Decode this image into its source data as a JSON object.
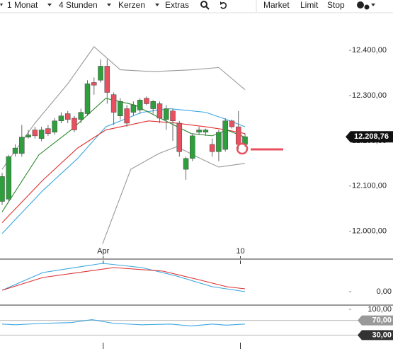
{
  "toolbar": {
    "items": [
      "1 Monat",
      "4 Stunden",
      "Kerzen",
      "Extras"
    ],
    "orders": [
      "Market",
      "Limit",
      "Stop"
    ]
  },
  "chart_data": [
    {
      "type": "candlestick",
      "open": [
        12066,
        12071,
        12172,
        12172,
        12208,
        12224,
        12205,
        12227,
        12219,
        12244,
        12260,
        12250,
        12247,
        12260,
        12329,
        12334,
        12365,
        12302,
        12255,
        12271,
        12263,
        12268,
        12294,
        12271,
        12282,
        12247,
        12266,
        12239,
        12137,
        12161,
        12219,
        12219,
        12192,
        12176,
        12181,
        12244,
        12231,
        12192
      ],
      "high": [
        12129,
        12169,
        12192,
        12235,
        12224,
        12231,
        12231,
        12235,
        12250,
        12263,
        12266,
        12255,
        12271,
        12334,
        12340,
        12380,
        12380,
        12307,
        12294,
        12279,
        12287,
        12294,
        12298,
        12290,
        12287,
        12279,
        12271,
        12244,
        12165,
        12216,
        12231,
        12227,
        12205,
        12224,
        12250,
        12247,
        12266,
        12216
      ],
      "low": [
        12058,
        12066,
        12165,
        12165,
        12205,
        12205,
        12199,
        12211,
        12213,
        12239,
        12239,
        12219,
        12239,
        12255,
        12302,
        12329,
        12282,
        12235,
        12247,
        12231,
        12255,
        12260,
        12279,
        12260,
        12239,
        12224,
        12200,
        12165,
        12114,
        12155,
        12213,
        12211,
        12165,
        12155,
        12176,
        12227,
        12181,
        12187
      ],
      "close": [
        12121,
        12165,
        12184,
        12208,
        12213,
        12211,
        12224,
        12216,
        12244,
        12255,
        12247,
        12224,
        12263,
        12326,
        12323,
        12365,
        12307,
        12263,
        12287,
        12239,
        12279,
        12290,
        12282,
        12287,
        12250,
        12271,
        12244,
        12176,
        12161,
        12211,
        12224,
        12224,
        12176,
        12219,
        12244,
        12231,
        12192,
        12209
      ],
      "up_color": "#2f9e3c",
      "down_color": "#e8505f",
      "series": [
        {
          "color": "#999999",
          "x": [
            0,
            5,
            10,
            14,
            18,
            23,
            29,
            33,
            37
          ],
          "values": [
            12137,
            12239,
            12326,
            12408,
            12357,
            12353,
            12357,
            12362,
            12313
          ]
        },
        {
          "color": "#999999",
          "x": [
            15.3,
            19.6,
            23.9,
            26.6,
            30.9,
            33,
            37
          ],
          "values": [
            11972,
            12137,
            12172,
            12187,
            12156,
            12142,
            12150
          ]
        },
        {
          "color": "#3aa6e0",
          "x": [
            0,
            6.2,
            11.5,
            15.8,
            21.3,
            25.6,
            31,
            34.2,
            37
          ],
          "values": [
            11995,
            12090,
            12161,
            12231,
            12263,
            12271,
            12263,
            12247,
            12231
          ]
        },
        {
          "color": "#e03030",
          "x": [
            0,
            6.2,
            11.5,
            15.8,
            22.3,
            26.6,
            31,
            34.2,
            37
          ],
          "values": [
            12019,
            12113,
            12184,
            12224,
            12244,
            12239,
            12231,
            12224,
            12216
          ]
        },
        {
          "color": "#2a8a2a",
          "x": [
            0,
            5.6,
            10.5,
            15.8,
            20.2,
            24.5,
            28.8,
            32,
            34.2,
            37
          ],
          "values": [
            12043,
            12169,
            12224,
            12294,
            12279,
            12247,
            12216,
            12211,
            12224,
            12208
          ]
        }
      ],
      "ylim": [
        11940,
        12480
      ],
      "yticks": [
        {
          "value": 12000,
          "label": "12.000,00"
        },
        {
          "value": 12100,
          "label": "12.100,00"
        },
        {
          "value": 12200,
          "label": "12.200,00"
        },
        {
          "value": 12300,
          "label": "12.300,00"
        },
        {
          "value": 12400,
          "label": "12.400,00"
        }
      ],
      "xticks": [
        {
          "value": 15.4,
          "label": "Apr"
        },
        {
          "value": 36.3,
          "label": "10"
        }
      ],
      "last_price": {
        "value": 12208.76,
        "label": "12.208,76"
      }
    },
    {
      "type": "line",
      "series": [
        {
          "color": "#3aa6e0",
          "x": [
            0,
            6.2,
            15.3,
            21.3,
            26.6,
            32,
            37
          ],
          "values": [
            2,
            27,
            40,
            34,
            22,
            7,
            0
          ]
        },
        {
          "color": "#e03030",
          "x": [
            0,
            6.2,
            17,
            24.5,
            29.9,
            34.2,
            37
          ],
          "values": [
            2,
            20,
            34,
            29,
            17,
            7,
            4
          ]
        }
      ],
      "ylim": [
        -18,
        44
      ],
      "yticks": [
        {
          "value": 0,
          "label": "0,00"
        }
      ]
    },
    {
      "type": "line",
      "series": [
        {
          "color": "#3aa6e0",
          "x": [
            0,
            2,
            6.2,
            10.5,
            13.7,
            17,
            21.3,
            25.6,
            28.8,
            32,
            34.2,
            37
          ],
          "values": [
            60,
            58,
            62,
            64,
            72,
            62,
            58,
            60,
            55,
            60,
            57,
            60
          ]
        }
      ],
      "ylim": [
        0,
        100
      ],
      "yticks": [
        {
          "value": 100,
          "label": "100,00"
        },
        {
          "value": 70,
          "label": "70,00"
        },
        {
          "value": 30,
          "label": "30,00"
        }
      ]
    }
  ]
}
